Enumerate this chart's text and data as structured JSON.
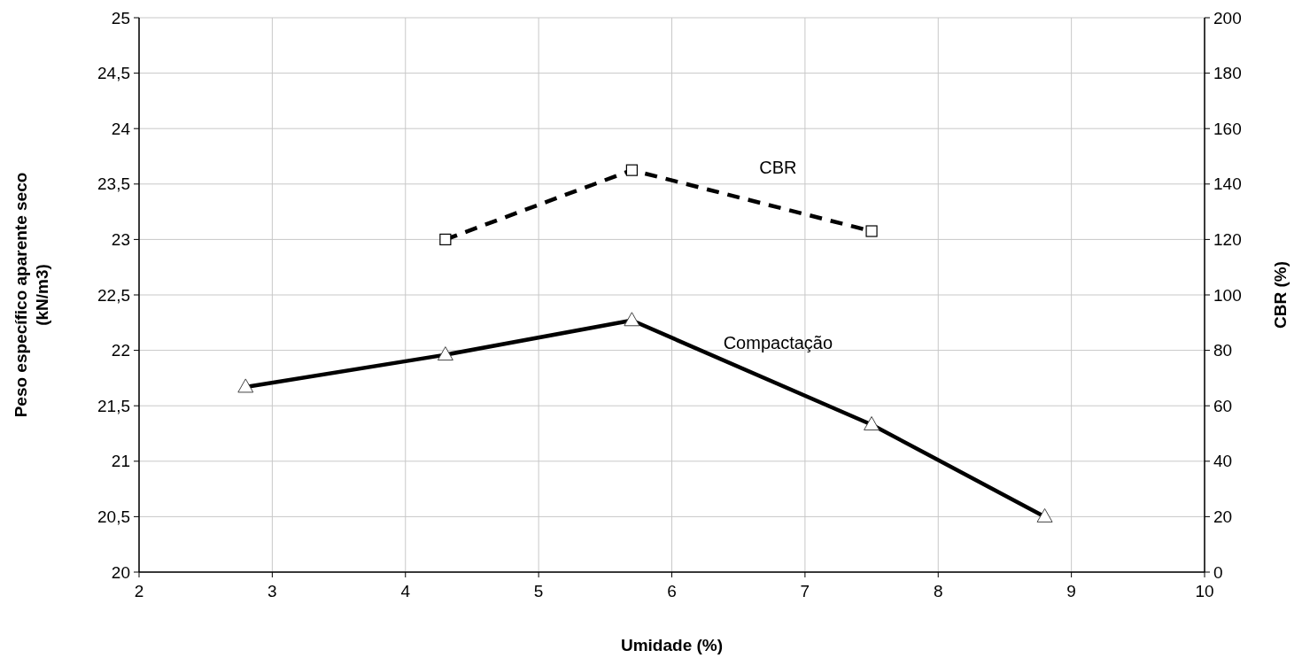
{
  "chart_data": {
    "type": "line",
    "xlabel": "Umidade (%)",
    "ylabel": "Peso específico aparente seco (kN/m3)",
    "y2label": "CBR (%)",
    "xlim": [
      2,
      10
    ],
    "xticks": [
      2,
      3,
      4,
      5,
      6,
      7,
      8,
      9,
      10
    ],
    "ylim": [
      20,
      25
    ],
    "yticks": [
      20,
      {
        "value": 20.5,
        "label": "20,5"
      },
      21,
      {
        "value": 21.5,
        "label": "21,5"
      },
      22,
      {
        "value": 22.5,
        "label": "22,5"
      },
      23,
      {
        "value": 23.5,
        "label": "23,5"
      },
      24,
      {
        "value": 24.5,
        "label": "24,5"
      },
      25
    ],
    "y2lim": [
      0,
      200
    ],
    "y2ticks": [
      0,
      20,
      40,
      60,
      80,
      100,
      120,
      140,
      160,
      180,
      200
    ],
    "grid": true,
    "series": [
      {
        "name": "Compactação",
        "color": "#000000",
        "marker": "triangle",
        "line_style": "solid",
        "x": [
          2.8,
          4.3,
          5.7,
          7.5,
          8.8
        ],
        "values": [
          21.67,
          21.96,
          22.27,
          21.33,
          20.5
        ]
      },
      {
        "name": "CBR",
        "color": "#000000",
        "marker": "square",
        "line_style": "dashed",
        "axis": "y2",
        "x": [
          4.3,
          5.7,
          7.5
        ],
        "values": [
          120,
          145,
          123
        ]
      }
    ]
  }
}
